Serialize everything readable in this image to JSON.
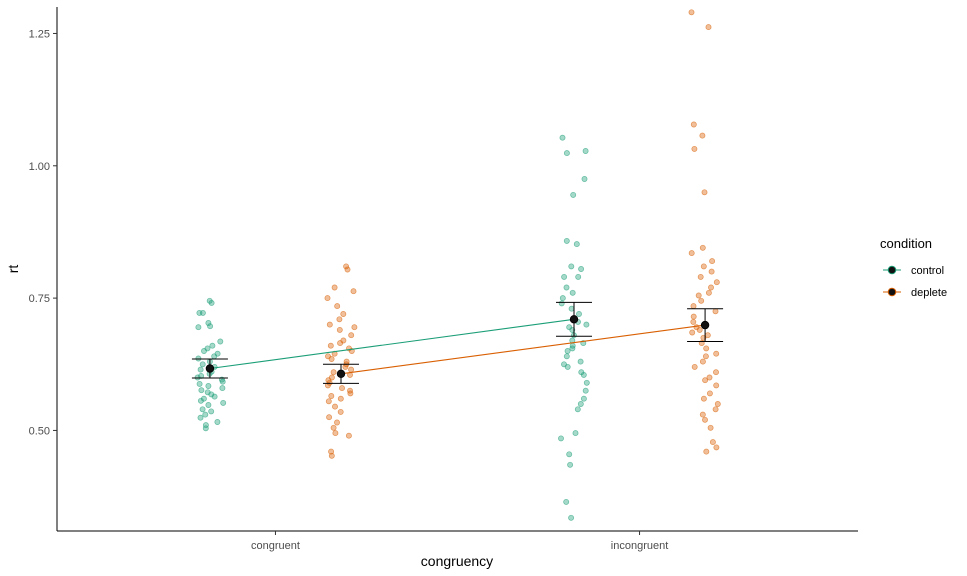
{
  "chart_data": {
    "type": "scatter",
    "xlabel": "congruency",
    "ylabel": "rt",
    "categories": [
      "congruent",
      "incongruent"
    ],
    "ylim": [
      0.31,
      1.3
    ],
    "yticks": [
      0.5,
      0.75,
      1.0,
      1.25
    ],
    "ytick_labels": [
      "0.50",
      "0.75",
      "1.00",
      "1.25"
    ],
    "legend": {
      "title": "condition",
      "position": "right"
    },
    "series": [
      {
        "name": "control",
        "color": "#1b9e77",
        "category_offset": -0.18,
        "means": [
          0.617,
          0.71
        ],
        "ci_low": [
          0.599,
          0.678
        ],
        "ci_high": [
          0.635,
          0.742
        ],
        "points": [
          [
            0.745,
            0.741,
            0.722,
            0.722,
            0.703,
            0.697,
            0.695,
            0.668,
            0.66,
            0.655,
            0.65,
            0.645,
            0.64,
            0.636,
            0.63,
            0.625,
            0.62,
            0.615,
            0.611,
            0.607,
            0.603,
            0.6,
            0.596,
            0.592,
            0.588,
            0.584,
            0.58,
            0.576,
            0.572,
            0.568,
            0.564,
            0.56,
            0.556,
            0.552,
            0.548,
            0.54,
            0.536,
            0.53,
            0.524,
            0.516,
            0.51,
            0.504
          ],
          [
            1.053,
            1.028,
            1.024,
            0.975,
            0.945,
            0.858,
            0.852,
            0.81,
            0.805,
            0.79,
            0.79,
            0.77,
            0.76,
            0.75,
            0.74,
            0.73,
            0.72,
            0.705,
            0.7,
            0.695,
            0.69,
            0.68,
            0.67,
            0.665,
            0.66,
            0.655,
            0.65,
            0.64,
            0.63,
            0.625,
            0.62,
            0.61,
            0.605,
            0.59,
            0.575,
            0.56,
            0.55,
            0.54,
            0.495,
            0.485,
            0.455,
            0.435,
            0.365,
            0.335
          ]
        ]
      },
      {
        "name": "deplete",
        "color": "#d95f02",
        "category_offset": 0.18,
        "means": [
          0.607,
          0.699
        ],
        "ci_low": [
          0.589,
          0.668
        ],
        "ci_high": [
          0.625,
          0.73
        ],
        "points": [
          [
            0.81,
            0.804,
            0.77,
            0.763,
            0.75,
            0.735,
            0.72,
            0.71,
            0.7,
            0.695,
            0.69,
            0.68,
            0.67,
            0.665,
            0.66,
            0.655,
            0.65,
            0.645,
            0.64,
            0.635,
            0.63,
            0.625,
            0.62,
            0.615,
            0.61,
            0.605,
            0.6,
            0.595,
            0.59,
            0.585,
            0.58,
            0.575,
            0.57,
            0.565,
            0.56,
            0.555,
            0.545,
            0.535,
            0.525,
            0.515,
            0.505,
            0.495,
            0.49,
            0.46,
            0.452
          ],
          [
            1.29,
            1.262,
            1.078,
            1.057,
            1.032,
            0.95,
            0.845,
            0.835,
            0.82,
            0.81,
            0.8,
            0.79,
            0.78,
            0.77,
            0.76,
            0.755,
            0.745,
            0.735,
            0.725,
            0.715,
            0.705,
            0.695,
            0.69,
            0.685,
            0.68,
            0.675,
            0.665,
            0.655,
            0.645,
            0.64,
            0.63,
            0.62,
            0.61,
            0.6,
            0.595,
            0.585,
            0.57,
            0.56,
            0.55,
            0.54,
            0.53,
            0.52,
            0.505,
            0.478,
            0.468,
            0.46
          ]
        ]
      }
    ]
  }
}
